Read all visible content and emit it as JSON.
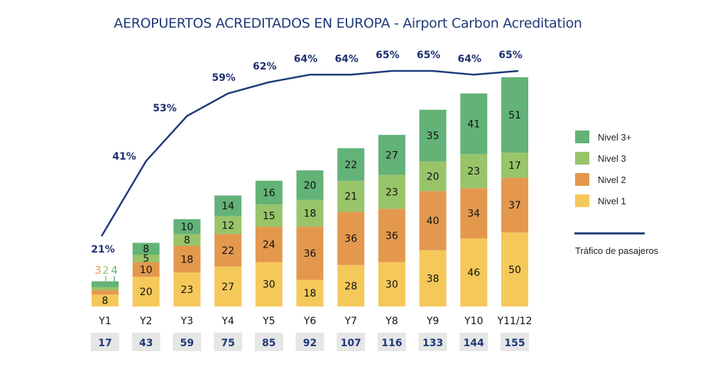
{
  "chart_data": {
    "type": "bar",
    "stacked": true,
    "title": "AEROPUERTOS ACREDITADOS EN EUROPA - Airport Carbon Acreditation",
    "categories": [
      "Y1",
      "Y2",
      "Y3",
      "Y4",
      "Y5",
      "Y6",
      "Y7",
      "Y8",
      "Y9",
      "Y10",
      "Y11/12"
    ],
    "totals": [
      17,
      43,
      59,
      75,
      85,
      92,
      107,
      116,
      133,
      144,
      155
    ],
    "series": [
      {
        "name": "Nivel 1",
        "color": "#f5c85a",
        "values": [
          8,
          20,
          23,
          27,
          30,
          18,
          28,
          30,
          38,
          46,
          50
        ]
      },
      {
        "name": "Nivel 2",
        "color": "#e3984e",
        "values": [
          3,
          10,
          18,
          22,
          24,
          36,
          36,
          36,
          40,
          34,
          37
        ]
      },
      {
        "name": "Nivel 3",
        "color": "#98c46a",
        "values": [
          2,
          5,
          8,
          12,
          15,
          18,
          21,
          23,
          20,
          23,
          17
        ]
      },
      {
        "name": "Nivel 3+",
        "color": "#63b277",
        "values": [
          4,
          8,
          10,
          14,
          16,
          20,
          22,
          27,
          35,
          41,
          51
        ]
      }
    ],
    "line": {
      "name": "Tráfico de pasajeros",
      "color": "#1f3a7a",
      "values_percent": [
        21,
        41,
        53,
        59,
        62,
        64,
        64,
        65,
        65,
        64,
        65
      ],
      "labels": [
        "21%",
        "41%",
        "53%",
        "59%",
        "62%",
        "64%",
        "64%",
        "65%",
        "65%",
        "64%",
        "65%"
      ]
    },
    "small_callouts": {
      "Y1": {
        "Nivel 2": "3",
        "Nivel 3": "2",
        "Nivel 3+": "4"
      }
    },
    "legend_order": [
      "Nivel 3+",
      "Nivel 3",
      "Nivel 2",
      "Nivel 1"
    ],
    "legend_position": "right",
    "xlabel": "",
    "ylabel": "",
    "grid": false
  }
}
